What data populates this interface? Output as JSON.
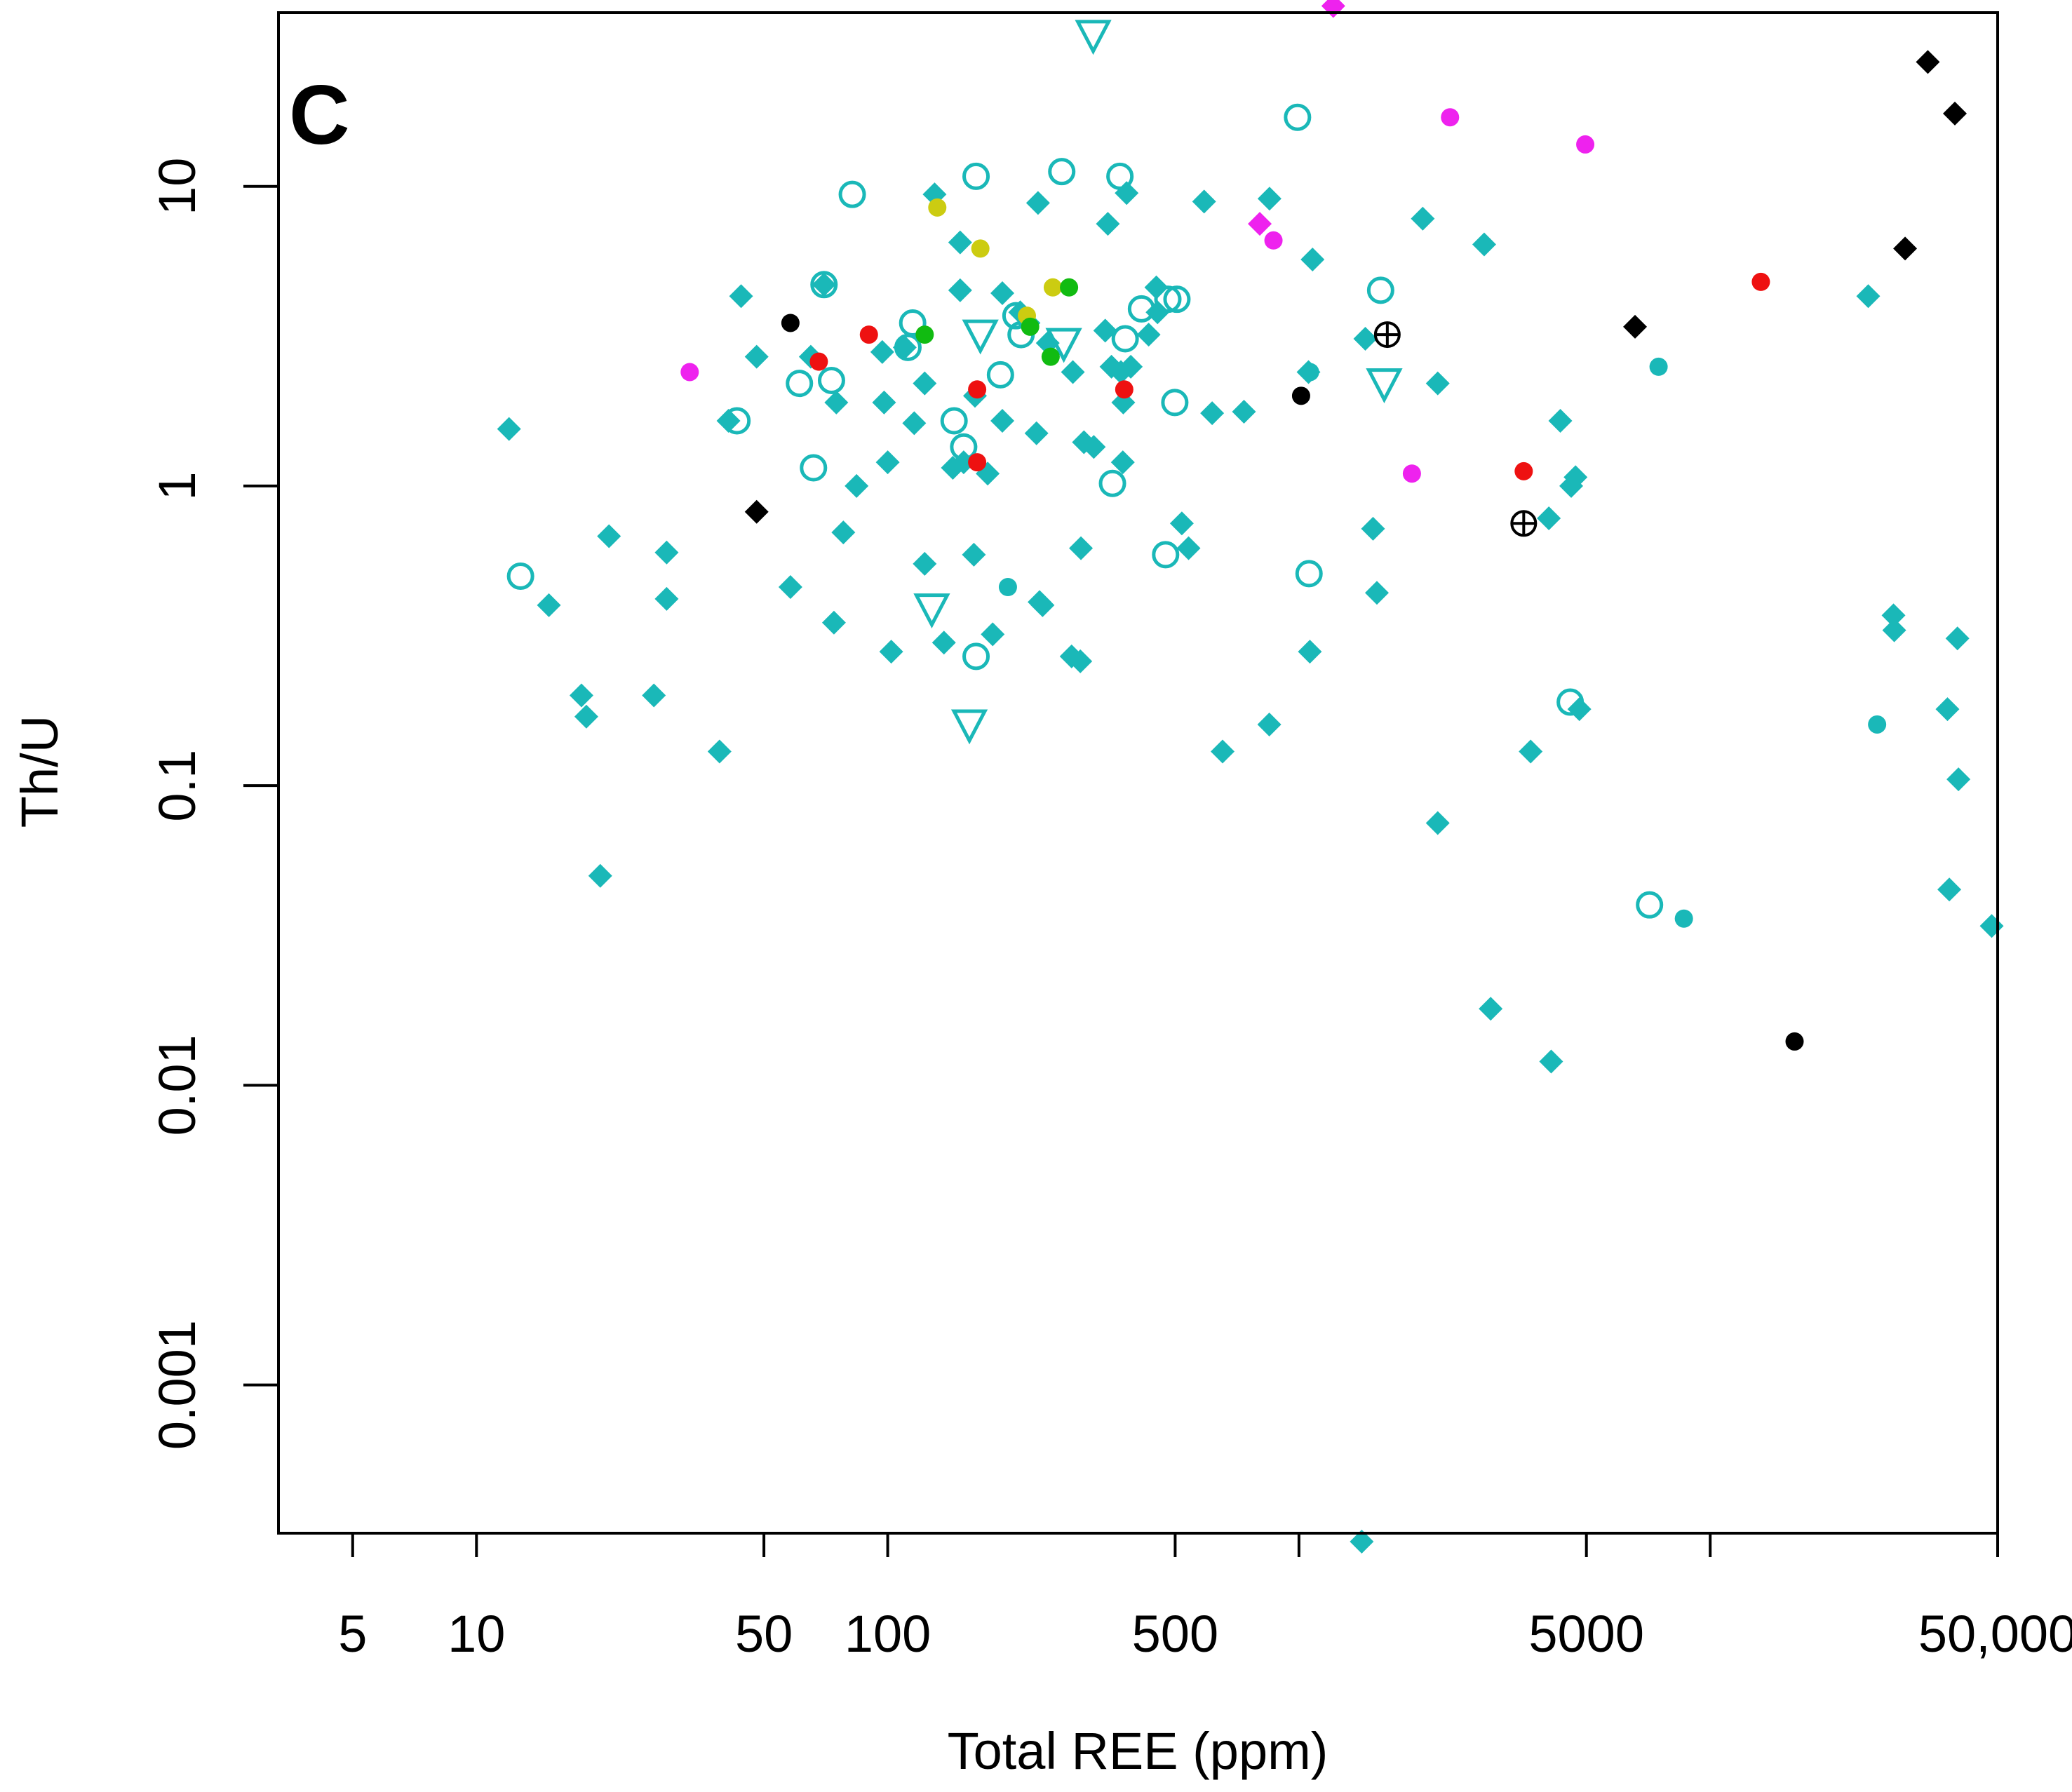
{
  "chart_data": {
    "type": "scatter",
    "panel_label": "C",
    "xlabel": "Total REE (ppm)",
    "ylabel": "Th/U",
    "x_scale": "log",
    "y_scale": "log",
    "xlim": [
      3.3,
      50000
    ],
    "ylim": [
      0.00032,
      38
    ],
    "x_ticks": [
      5,
      10,
      50,
      100,
      500,
      1000,
      5000,
      10000,
      50000
    ],
    "x_tick_labels": [
      "5",
      "10",
      "50",
      "100",
      "500",
      "",
      "5000",
      "",
      "50,000"
    ],
    "y_ticks": [
      0.001,
      0.01,
      0.1,
      1,
      10
    ],
    "y_tick_labels": [
      "0.001",
      "0.01",
      "0.1",
      "1",
      "10"
    ],
    "colors": {
      "teal": "#1ab8b8",
      "red": "#ee1111",
      "magenta": "#ee22ee",
      "black": "#000000",
      "yellow": "#cccc11",
      "green": "#11bb11"
    },
    "series": [
      {
        "name": "teal diamonds",
        "marker": "diamond-filled",
        "color": "#1ab8b8",
        "points": [
          [
            12,
            1.55
          ],
          [
            15,
            0.4
          ],
          [
            18,
            0.2
          ],
          [
            18.5,
            0.17
          ],
          [
            20,
            0.05
          ],
          [
            21,
            0.68
          ],
          [
            27,
            0.2
          ],
          [
            29,
            0.6
          ],
          [
            29,
            0.42
          ],
          [
            39,
            0.13
          ],
          [
            41,
            1.65
          ],
          [
            44,
            4.3
          ],
          [
            48,
            2.7
          ],
          [
            58,
            0.46
          ],
          [
            65,
            2.7
          ],
          [
            70,
            4.7
          ],
          [
            74,
            0.35
          ],
          [
            75,
            1.9
          ],
          [
            78,
            0.7
          ],
          [
            84,
            1
          ],
          [
            97,
            2.8
          ],
          [
            98,
            1.9
          ],
          [
            100,
            1.2
          ],
          [
            102,
            0.28
          ],
          [
            110,
            2.9
          ],
          [
            116,
            1.62
          ],
          [
            123,
            0.55
          ],
          [
            123,
            2.2
          ],
          [
            130,
            9.4
          ],
          [
            137,
            0.3
          ],
          [
            144,
            1.15
          ],
          [
            150,
            6.5
          ],
          [
            150,
            4.5
          ],
          [
            153,
            1.2
          ],
          [
            162,
            0.59
          ],
          [
            163,
            2.0
          ],
          [
            175,
            1.1
          ],
          [
            180,
            0.32
          ],
          [
            190,
            4.4
          ],
          [
            190,
            1.65
          ],
          [
            210,
            3.8
          ],
          [
            220,
            3.5
          ],
          [
            230,
            1.5
          ],
          [
            232,
            8.8
          ],
          [
            234,
            0.41
          ],
          [
            238,
            0.4
          ],
          [
            245,
            3.0
          ],
          [
            280,
            0.27
          ],
          [
            282,
            2.4
          ],
          [
            294,
            0.26
          ],
          [
            295,
            0.62
          ],
          [
            300,
            1.4
          ],
          [
            317,
            1.35
          ],
          [
            338,
            3.3
          ],
          [
            343,
            7.5
          ],
          [
            350,
            2.5
          ],
          [
            369,
            2.4
          ],
          [
            373,
            1.2
          ],
          [
            374,
            1.9
          ],
          [
            381,
            9.5
          ],
          [
            390,
            2.5
          ],
          [
            431,
            3.2
          ],
          [
            450,
            4.6
          ],
          [
            453,
            3.8
          ],
          [
            519,
            0.75
          ],
          [
            539,
            0.62
          ],
          [
            588,
            8.9
          ],
          [
            615,
            1.75
          ],
          [
            652,
            0.13
          ],
          [
            735,
            1.77
          ],
          [
            847,
            0.16
          ],
          [
            848,
            9.1
          ],
          [
            1055,
            2.4
          ],
          [
            1063,
            0.28
          ],
          [
            1079,
            5.7
          ],
          [
            1421,
            0.0003
          ],
          [
            1450,
            3.1
          ],
          [
            1514,
            0.72
          ],
          [
            1547,
            0.44
          ],
          [
            2000,
            7.8
          ],
          [
            2175,
            2.2
          ],
          [
            2175,
            0.075
          ],
          [
            2821,
            6.4
          ],
          [
            2925,
            0.018
          ],
          [
            3659,
            0.13
          ],
          [
            4052,
            0.78
          ],
          [
            4105,
            0.012
          ],
          [
            4321,
            1.65
          ],
          [
            4592,
            1.0
          ],
          [
            4705,
            1.07
          ],
          [
            4807,
            0.18
          ],
          [
            24225,
            4.3
          ],
          [
            27910,
            0.37
          ],
          [
            28025,
            0.33
          ],
          [
            37755,
            0.18
          ],
          [
            38145,
            0.045
          ],
          [
            39920,
            0.31
          ],
          [
            40150,
            0.105
          ],
          [
            48365,
            0.034
          ]
        ]
      },
      {
        "name": "teal filled circles",
        "marker": "circle-filled",
        "color": "#1ab8b8",
        "points": [
          [
            196,
            0.46
          ],
          [
            1064,
            2.4
          ],
          [
            7490,
            2.5
          ],
          [
            8630,
            0.036
          ],
          [
            25460,
            0.16
          ]
        ]
      },
      {
        "name": "teal open circles",
        "marker": "circle-open",
        "color": "#1ab8b8",
        "points": [
          [
            12.8,
            0.5
          ],
          [
            43,
            1.65
          ],
          [
            61,
            2.2
          ],
          [
            66,
            1.15
          ],
          [
            70,
            4.7
          ],
          [
            73,
            2.25
          ],
          [
            82,
            9.4
          ],
          [
            112,
            2.9
          ],
          [
            115,
            3.5
          ],
          [
            145,
            1.65
          ],
          [
            153,
            1.35
          ],
          [
            164,
            10.8
          ],
          [
            164,
            0.27
          ],
          [
            188,
            2.35
          ],
          [
            205,
            3.7
          ],
          [
            211,
            3.2
          ],
          [
            265,
            11.2
          ],
          [
            352,
            1.02
          ],
          [
            367,
            10.8
          ],
          [
            378,
            3.1
          ],
          [
            414,
            3.9
          ],
          [
            480,
            4.2
          ],
          [
            505,
            4.2
          ],
          [
            474,
            0.59
          ],
          [
            499,
            1.9
          ],
          [
            992,
            17
          ],
          [
            1058,
            0.51
          ],
          [
            1580,
            4.5
          ],
          [
            4567,
            0.19
          ],
          [
            7120,
            0.04
          ]
        ]
      },
      {
        "name": "teal open triangles",
        "marker": "triangle-open",
        "color": "#1ab8b8",
        "points": [
          [
            128,
            0.39
          ],
          [
            158,
            0.16
          ],
          [
            168,
            3.2
          ],
          [
            268,
            3.0
          ],
          [
            316,
            32
          ],
          [
            1612,
            2.2
          ]
        ]
      },
      {
        "name": "red circles",
        "marker": "circle-filled",
        "color": "#ee1111",
        "points": [
          [
            68,
            2.6
          ],
          [
            90,
            3.2
          ],
          [
            165,
            2.1
          ],
          [
            165,
            1.2
          ],
          [
            376,
            2.1
          ],
          [
            3520,
            1.12
          ],
          [
            13280,
            4.8
          ]
        ]
      },
      {
        "name": "magenta circles",
        "marker": "circle-filled",
        "color": "#ee22ee",
        "points": [
          [
            33,
            2.4
          ],
          [
            867,
            6.6
          ],
          [
            1882,
            1.1
          ],
          [
            2330,
            17
          ],
          [
            4968,
            13.8
          ]
        ]
      },
      {
        "name": "magenta diamonds",
        "marker": "diamond-filled",
        "color": "#ee22ee",
        "points": [
          [
            803,
            7.5
          ],
          [
            1212,
            40
          ]
        ]
      },
      {
        "name": "black circles",
        "marker": "circle-filled",
        "color": "#000000",
        "points": [
          [
            58,
            3.5
          ],
          [
            1012,
            2.0
          ],
          [
            16040,
            0.014
          ]
        ]
      },
      {
        "name": "black diamonds",
        "marker": "diamond-filled",
        "color": "#000000",
        "points": [
          [
            48,
            0.82
          ],
          [
            6565,
            3.4
          ],
          [
            29780,
            6.2
          ],
          [
            33820,
            26
          ],
          [
            39350,
            17.5
          ]
        ]
      },
      {
        "name": "crossed circles",
        "marker": "circle-plus",
        "color": "#000000",
        "points": [
          [
            1640,
            3.2
          ],
          [
            3520,
            0.75
          ]
        ]
      },
      {
        "name": "yellow circles",
        "marker": "circle-filled",
        "color": "#cccc11",
        "points": [
          [
            132,
            8.5
          ],
          [
            168,
            6.2
          ],
          [
            218,
            3.7
          ],
          [
            252,
            4.6
          ]
        ]
      },
      {
        "name": "green circles",
        "marker": "circle-filled",
        "color": "#11bb11",
        "points": [
          [
            123,
            3.2
          ],
          [
            222,
            3.4
          ],
          [
            249,
            2.7
          ],
          [
            276,
            4.6
          ]
        ]
      }
    ]
  }
}
